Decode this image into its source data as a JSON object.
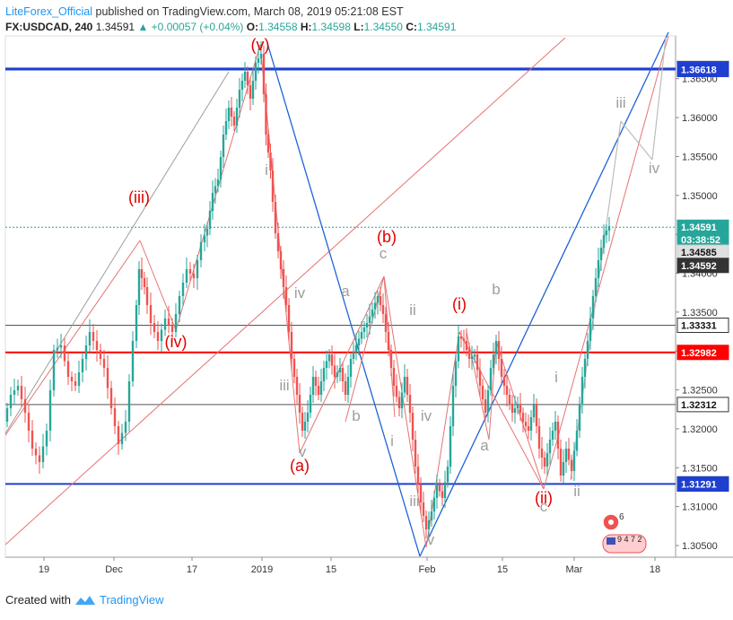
{
  "header": {
    "author": "LiteForex_Official",
    "published_text": "published on TradingView.com, March 08, 2019 05:21:08 EST",
    "symbol": "FX:USDCAD, 240",
    "last_price": "1.34591",
    "change": "+0.00057 (+0.04%)",
    "open_label": "O:",
    "open": "1.34558",
    "high_label": "H:",
    "high": "1.34598",
    "low_label": "L:",
    "low": "1.34550",
    "close_label": "C:",
    "close": "1.34591"
  },
  "footer": {
    "created_with": "Created with",
    "brand": "TradingView"
  },
  "colors": {
    "up": "#26a69a",
    "down": "#ef5350",
    "blue_line": "#1e3fd0",
    "red_line": "#ff0000",
    "price_tag": "#26a69a",
    "wave_red": "#e00000",
    "wave_grey": "#9e9e9e"
  },
  "chart_data": {
    "type": "candlestick",
    "ylim": [
      1.3035,
      1.3705
    ],
    "y_ticks": [
      "1.30500",
      "1.31000",
      "1.31500",
      "1.32000",
      "1.32500",
      "1.33000",
      "1.33500",
      "1.34000",
      "1.34500",
      "1.35000",
      "1.35500",
      "1.36000",
      "1.36500"
    ],
    "x_ticks": [
      "19",
      "Dec",
      "17",
      "2019",
      "15",
      "Feb",
      "15",
      "Mar",
      "18"
    ],
    "price_tags": [
      {
        "label": "1.36631",
        "value": 1.36631,
        "style": "outline"
      },
      {
        "label": "1.36618",
        "value": 1.36618,
        "style": "blue"
      },
      {
        "label": "1.34591",
        "value": 1.34591,
        "style": "green"
      },
      {
        "label": "03:38:52",
        "value": 1.3443,
        "style": "green"
      },
      {
        "label": "1.34585",
        "value": 1.3427,
        "style": "grey"
      },
      {
        "label": "1.34592",
        "value": 1.341,
        "style": "dark"
      },
      {
        "label": "1.33331",
        "value": 1.33331,
        "style": "outline"
      },
      {
        "label": "1.32982",
        "value": 1.32982,
        "style": "red"
      },
      {
        "label": "1.32312",
        "value": 1.32312,
        "style": "outline"
      },
      {
        "label": "1.31292",
        "value": 1.31292,
        "style": "outline"
      },
      {
        "label": "1.31291",
        "value": 1.31291,
        "style": "blue"
      }
    ],
    "horizontal_levels": [
      {
        "value": 1.36631,
        "color": "#1e3fd0"
      },
      {
        "value": 1.36618,
        "color": "#1e3fd0"
      },
      {
        "value": 1.34591,
        "color": "#26a69a"
      },
      {
        "value": 1.33331,
        "color": "#555555"
      },
      {
        "value": 1.32982,
        "color": "#ff0000"
      },
      {
        "value": 1.32312,
        "color": "#555555"
      },
      {
        "value": 1.31292,
        "color": "#1e3fd0"
      }
    ],
    "wave_labels": [
      {
        "text": "(v)",
        "color": "red",
        "x": 290,
        "y": 56
      },
      {
        "text": "(iii)",
        "color": "red",
        "x": 155,
        "y": 226
      },
      {
        "text": "(iv)",
        "color": "red",
        "x": 196,
        "y": 387
      },
      {
        "text": "(b)",
        "color": "red",
        "x": 431,
        "y": 270
      },
      {
        "text": "(a)",
        "color": "red",
        "x": 334,
        "y": 525
      },
      {
        "text": "(i)",
        "color": "red",
        "x": 512,
        "y": 345
      },
      {
        "text": "(ii)",
        "color": "red",
        "x": 606,
        "y": 561
      },
      {
        "text": "c",
        "color": "grey",
        "x": 427,
        "y": 288
      },
      {
        "text": "a",
        "color": "grey",
        "x": 385,
        "y": 330
      },
      {
        "text": "b",
        "color": "grey",
        "x": 397,
        "y": 469
      },
      {
        "text": "iv",
        "color": "grey",
        "x": 334,
        "y": 332
      },
      {
        "text": "iii",
        "color": "grey",
        "x": 317,
        "y": 435
      },
      {
        "text": "v",
        "color": "grey",
        "x": 337,
        "y": 509
      },
      {
        "text": "i",
        "color": "grey",
        "x": 297,
        "y": 195
      },
      {
        "text": "ii",
        "color": "grey",
        "x": 460,
        "y": 351
      },
      {
        "text": "i",
        "color": "grey",
        "x": 437,
        "y": 497
      },
      {
        "text": "iv",
        "color": "grey",
        "x": 475,
        "y": 469
      },
      {
        "text": "iii",
        "color": "grey",
        "x": 462,
        "y": 564
      },
      {
        "text": "v",
        "color": "grey",
        "x": 480,
        "y": 607
      },
      {
        "text": "b",
        "color": "grey",
        "x": 553,
        "y": 328
      },
      {
        "text": "a",
        "color": "grey",
        "x": 540,
        "y": 502
      },
      {
        "text": "c",
        "color": "grey",
        "x": 606,
        "y": 570
      },
      {
        "text": "i",
        "color": "grey",
        "x": 620,
        "y": 426
      },
      {
        "text": "ii",
        "color": "grey",
        "x": 643,
        "y": 553
      },
      {
        "text": "iii",
        "color": "grey",
        "x": 692,
        "y": 120
      },
      {
        "text": "iv",
        "color": "grey",
        "x": 729,
        "y": 193
      }
    ],
    "event_badge": {
      "count": "6",
      "digits": "9 4 7 2"
    }
  }
}
